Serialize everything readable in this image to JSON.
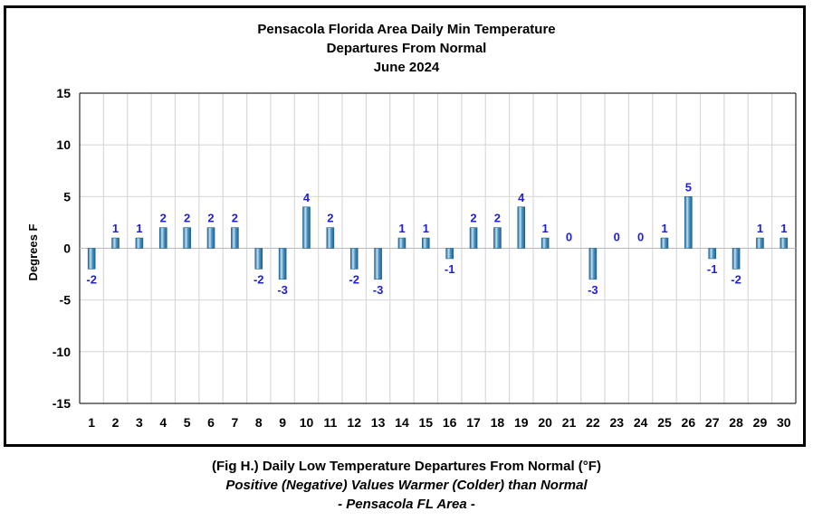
{
  "chart_data": {
    "type": "bar",
    "title_lines": [
      "Pensacola Florida Area Daily Min Temperature",
      "Departures From Normal",
      "June 2024"
    ],
    "xlabel": "",
    "ylabel": "Degrees F",
    "ylim": [
      -15,
      15
    ],
    "yticks": [
      15,
      10,
      5,
      0,
      -5,
      -10,
      -15
    ],
    "yticks_labels": [
      "15",
      "10",
      "5",
      "0",
      "-5",
      "-10",
      "-15"
    ],
    "categories": [
      "1",
      "2",
      "3",
      "4",
      "5",
      "6",
      "7",
      "8",
      "9",
      "10",
      "11",
      "12",
      "13",
      "14",
      "15",
      "16",
      "17",
      "18",
      "19",
      "20",
      "21",
      "22",
      "23",
      "24",
      "25",
      "26",
      "27",
      "28",
      "29",
      "30"
    ],
    "values": [
      -2,
      1,
      1,
      2,
      2,
      2,
      2,
      -2,
      -3,
      4,
      2,
      -2,
      -3,
      1,
      1,
      -1,
      2,
      2,
      4,
      1,
      0,
      -3,
      0,
      0,
      1,
      5,
      -1,
      -2,
      1,
      1
    ],
    "data_labels": [
      "-2",
      "1",
      "1",
      "2",
      "2",
      "2",
      "2",
      "-2",
      "-3",
      "4",
      "2",
      "-2",
      "-3",
      "1",
      "1",
      "-1",
      "2",
      "2",
      "4",
      "1",
      "0",
      "-3",
      "0",
      "0",
      "1",
      "5",
      "-1",
      "-2",
      "1",
      "1"
    ],
    "grid": true,
    "legend": "none",
    "colors": {
      "bar": "#4f94c7",
      "bar_dark": "#1f5f8b",
      "bar_light": "#bfe3f5",
      "label": "#1f1fd6",
      "grid": "#d9d9d9"
    }
  },
  "caption": {
    "line1": "(Fig H.) Daily Low Temperature Departures From Normal (°F)",
    "line2": "Positive (Negative) Values Warmer (Colder) than Normal",
    "line3": "- Pensacola FL Area -"
  }
}
